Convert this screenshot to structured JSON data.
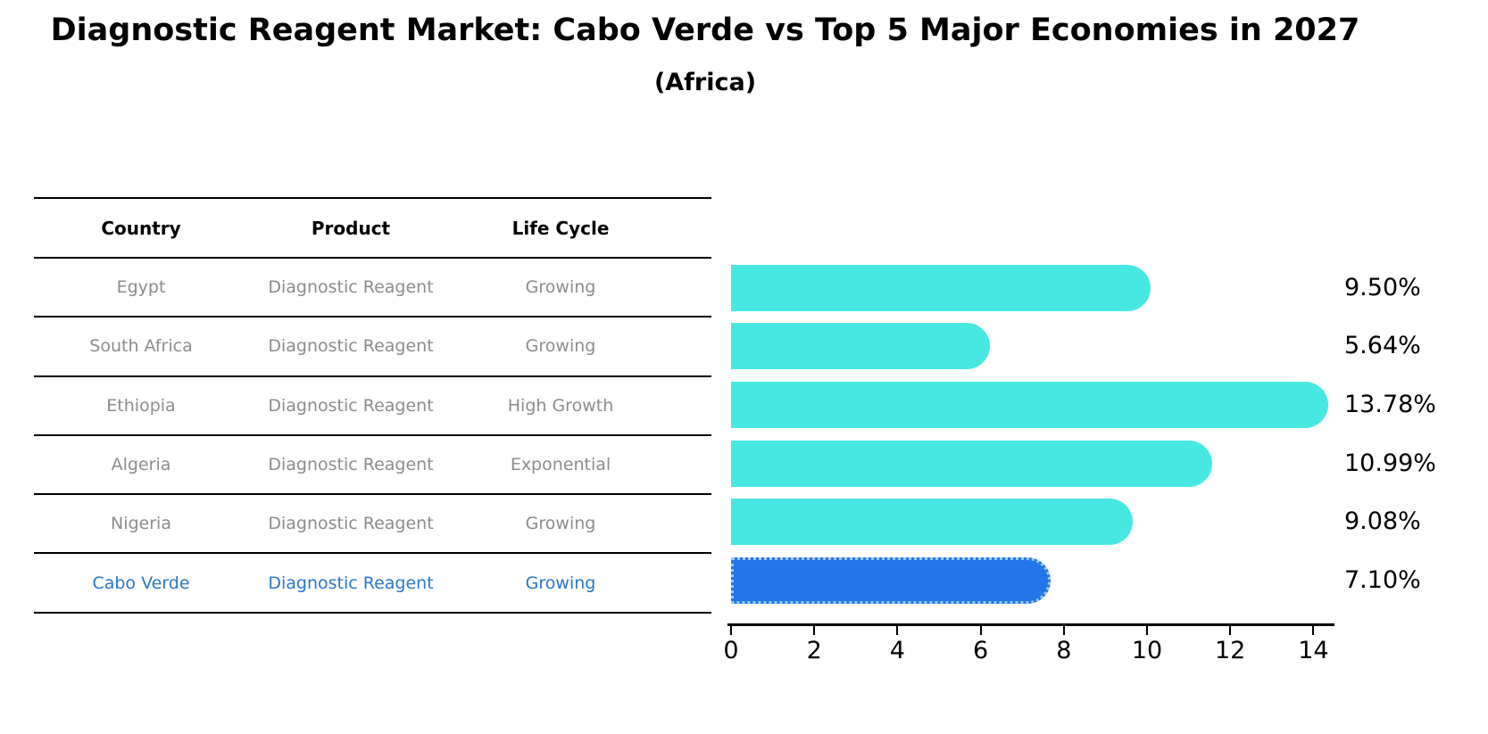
{
  "title": "Diagnostic Reagent Market: Cabo Verde vs Top 5 Major Economies in 2027",
  "subtitle": "(Africa)",
  "table": {
    "headers": [
      "Country",
      "Product",
      "Life Cycle"
    ],
    "rows": [
      {
        "country": "Egypt",
        "product": "Diagnostic Reagent",
        "life_cycle": "Growing"
      },
      {
        "country": "South Africa",
        "product": "Diagnostic Reagent",
        "life_cycle": "Growing"
      },
      {
        "country": "Ethiopia",
        "product": "Diagnostic Reagent",
        "life_cycle": "High Growth"
      },
      {
        "country": "Algeria",
        "product": "Diagnostic Reagent",
        "life_cycle": "Exponential"
      },
      {
        "country": "Nigeria",
        "product": "Diagnostic Reagent",
        "life_cycle": "Growing"
      },
      {
        "country": "Cabo Verde",
        "product": "Diagnostic Reagent",
        "life_cycle": "Growing"
      }
    ],
    "highlight_row": 5
  },
  "chart_data": {
    "type": "bar",
    "orientation": "horizontal",
    "categories": [
      "Egypt",
      "South Africa",
      "Ethiopia",
      "Algeria",
      "Nigeria",
      "Cabo Verde"
    ],
    "values": [
      9.5,
      5.64,
      13.78,
      10.99,
      9.08,
      7.1
    ],
    "value_labels": [
      "9.50%",
      "5.64%",
      "13.78%",
      "10.99%",
      "9.08%",
      "7.10%"
    ],
    "x_ticks": [
      0,
      2,
      4,
      6,
      8,
      10,
      12,
      14
    ],
    "xlim": [
      0,
      14.5
    ],
    "grid": false,
    "bar_color": "#48e8e2",
    "highlight_index": 5,
    "highlight_color": "#2276e8",
    "highlight_text_color": "#2878c8",
    "axis_color": "#000000",
    "table_text_color": "#8c8c8c"
  }
}
